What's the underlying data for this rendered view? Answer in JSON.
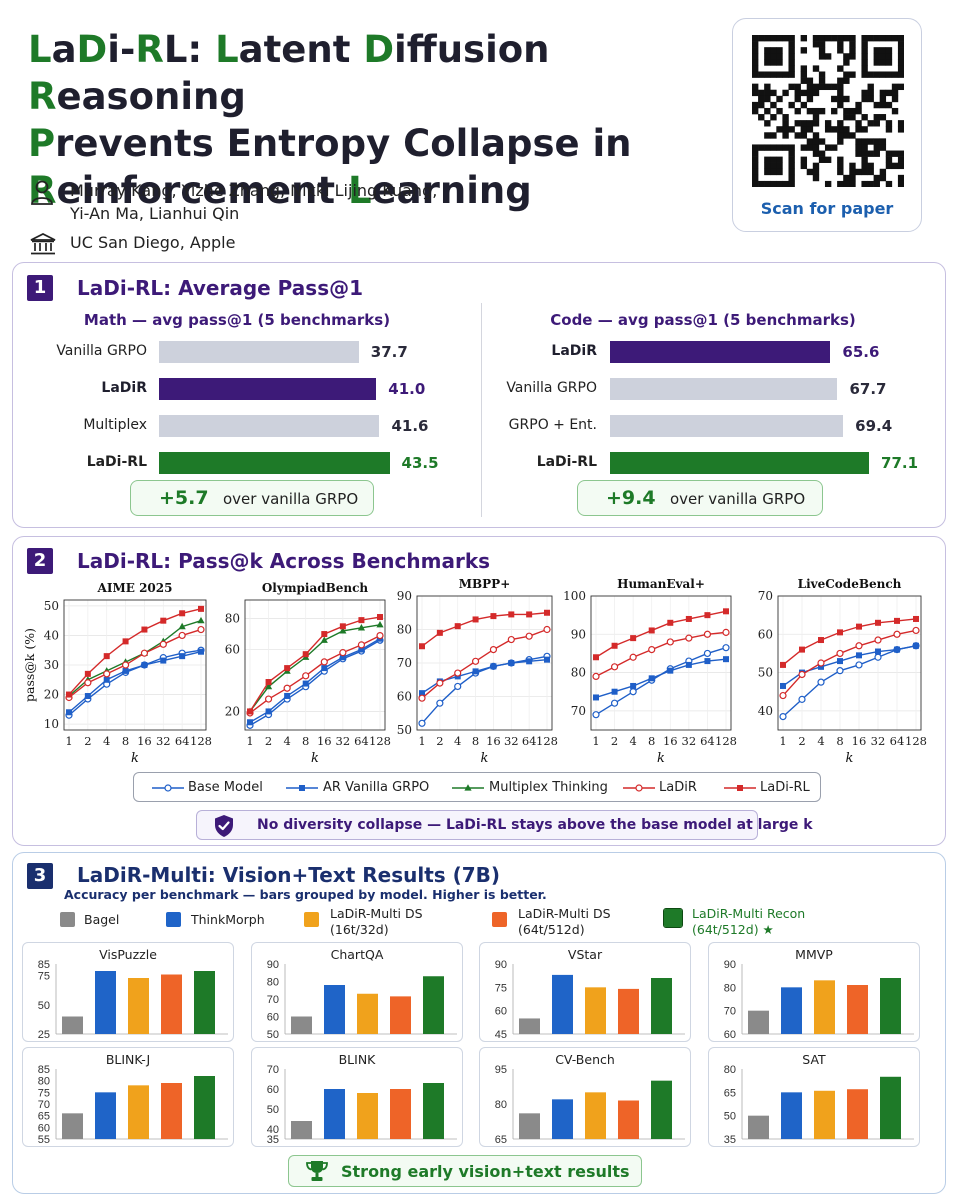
{
  "title": {
    "lines": [
      [
        {
          "t": "L",
          "g": true
        },
        {
          "t": "a"
        },
        {
          "t": "D",
          "g": true
        },
        {
          "t": "i-"
        },
        {
          "t": "R",
          "g": true
        },
        {
          "t": "L: "
        },
        {
          "t": "L",
          "g": true
        },
        {
          "t": "atent "
        },
        {
          "t": "D",
          "g": true
        },
        {
          "t": "iffusion "
        },
        {
          "t": "R",
          "g": true
        },
        {
          "t": "easoning"
        }
      ],
      [
        {
          "t": "P",
          "g": true
        },
        {
          "t": "revents Entropy Collapse in"
        }
      ],
      [
        {
          "t": "R",
          "g": true
        },
        {
          "t": "einforcement "
        },
        {
          "t": "L",
          "g": true
        },
        {
          "t": "earning"
        }
      ]
    ]
  },
  "authors": {
    "line1": "Murray Kang, Yizhe Zhang, Nikki Lijing Kuang,",
    "line2": "Yi-An Ma, Lianhui Qin",
    "icon": "person-icon"
  },
  "affiliation": {
    "text": "UC San Diego, Apple",
    "icon": "institution-icon"
  },
  "qr": {
    "label": "Scan for paper"
  },
  "colors": {
    "purple": "#3d1a78",
    "green": "#1e7a28",
    "gray_bar": "#cdd1dc",
    "blue_series": "#1f5fc8",
    "red_series": "#d42a2a",
    "bagel": "#8a8a8a",
    "thinkmorph": "#1f64c8",
    "ds16": "#f0a21c",
    "ds64": "#ee6428",
    "recon": "#1e7a28"
  },
  "section1": {
    "number": "1",
    "title": "LaDi-RL: Average Pass@1",
    "math": {
      "subtitle": "Math — avg pass@1 (5 benchmarks)",
      "bars": [
        {
          "label": "Vanilla GRPO",
          "value": 37.7,
          "display": "37.7",
          "color": "gray"
        },
        {
          "label": "LaDiR",
          "value": 41.0,
          "display": "41.0",
          "color": "purple"
        },
        {
          "label": "Multiplex",
          "value": 41.6,
          "display": "41.6",
          "color": "gray"
        },
        {
          "label": "LaDi-RL",
          "value": 43.5,
          "display": "43.5",
          "color": "green"
        }
      ],
      "gain": {
        "value": "+5.7",
        "text": "over vanilla GRPO"
      }
    },
    "code": {
      "subtitle": "Code — avg pass@1 (5 benchmarks)",
      "bars": [
        {
          "label": "LaDiR",
          "value": 65.6,
          "display": "65.6",
          "color": "purple"
        },
        {
          "label": "Vanilla GRPO",
          "value": 67.7,
          "display": "67.7",
          "color": "gray"
        },
        {
          "label": "GRPO + Ent.",
          "value": 69.4,
          "display": "69.4",
          "color": "gray"
        },
        {
          "label": "LaDi-RL",
          "value": 77.1,
          "display": "77.1",
          "color": "green"
        }
      ],
      "gain": {
        "value": "+9.4",
        "text": "over vanilla GRPO"
      }
    }
  },
  "section2": {
    "number": "2",
    "title": "LaDi-RL: Pass@k Across Benchmarks",
    "ylabel": "pass@k (%)",
    "xlabel": "k",
    "note": "No diversity collapse — LaDi-RL stays above the base model at large k",
    "legend": [
      "Base Model",
      "AR Vanilla GRPO",
      "Multiplex Thinking",
      "LaDiR",
      "LaDi-RL"
    ]
  },
  "chart_data": [
    {
      "type": "line",
      "title": "AIME 2025",
      "xlabel": "k",
      "ylabel": "pass@k (%)",
      "x": [
        "1",
        "2",
        "4",
        "8",
        "16",
        "32",
        "64",
        "128"
      ],
      "ylim": [
        8,
        52
      ],
      "yticks": [
        10,
        20,
        30,
        40,
        50
      ],
      "series": [
        {
          "name": "Base Model",
          "values": [
            13,
            18.5,
            23.5,
            27.5,
            30,
            32.5,
            34,
            35
          ]
        },
        {
          "name": "AR Vanilla GRPO",
          "values": [
            14,
            19.5,
            25,
            28,
            30,
            31.5,
            33,
            34.5
          ]
        },
        {
          "name": "Multiplex Thinking",
          "values": [
            19.5,
            25,
            28,
            31,
            34,
            38,
            43,
            45
          ]
        },
        {
          "name": "LaDiR",
          "values": [
            19,
            24,
            27,
            30,
            34,
            37,
            40,
            42
          ]
        },
        {
          "name": "LaDi-RL",
          "values": [
            20,
            27,
            33,
            38,
            42,
            45,
            47.5,
            49
          ]
        }
      ]
    },
    {
      "type": "line",
      "title": "OlympiadBench",
      "xlabel": "k",
      "ylabel": "",
      "x": [
        "1",
        "2",
        "4",
        "8",
        "16",
        "32",
        "64",
        "128"
      ],
      "ylim": [
        8,
        92
      ],
      "yticks": [
        20,
        60,
        80
      ],
      "series": [
        {
          "name": "Base Model",
          "values": [
            11,
            18,
            28,
            36,
            46,
            54,
            59,
            66
          ]
        },
        {
          "name": "AR Vanilla GRPO",
          "values": [
            13,
            20,
            30,
            38,
            48,
            55,
            60,
            67
          ]
        },
        {
          "name": "Multiplex Thinking",
          "values": [
            20,
            36,
            46,
            55,
            66,
            72,
            74,
            76
          ]
        },
        {
          "name": "LaDiR",
          "values": [
            19,
            28,
            35,
            43,
            52,
            58,
            63,
            69
          ]
        },
        {
          "name": "LaDi-RL",
          "values": [
            20,
            39,
            48,
            57,
            70,
            75,
            79,
            81
          ]
        }
      ]
    },
    {
      "type": "line",
      "title": "MBPP+",
      "xlabel": "k",
      "ylabel": "",
      "x": [
        "1",
        "2",
        "4",
        "8",
        "16",
        "32",
        "64",
        "128"
      ],
      "ylim": [
        50,
        90
      ],
      "yticks": [
        50,
        60,
        70,
        80,
        90
      ],
      "series": [
        {
          "name": "Base Model",
          "values": [
            52,
            58,
            63,
            67,
            69,
            70,
            71,
            72
          ]
        },
        {
          "name": "AR Vanilla GRPO",
          "values": [
            61,
            64.5,
            66,
            67.5,
            69,
            70,
            70.5,
            71
          ]
        },
        {
          "name": "LaDiR",
          "values": [
            59.5,
            64,
            67,
            70.5,
            74,
            77,
            78,
            80
          ]
        },
        {
          "name": "LaDi-RL",
          "values": [
            75,
            79,
            81,
            83,
            84,
            84.5,
            84.5,
            85
          ]
        }
      ]
    },
    {
      "type": "line",
      "title": "HumanEval+",
      "xlabel": "k",
      "ylabel": "",
      "x": [
        "1",
        "2",
        "4",
        "8",
        "16",
        "32",
        "64",
        "128"
      ],
      "ylim": [
        65,
        100
      ],
      "yticks": [
        70,
        80,
        90,
        100
      ],
      "series": [
        {
          "name": "Base Model",
          "values": [
            69,
            72,
            75,
            78,
            81,
            83,
            85,
            86.5
          ]
        },
        {
          "name": "AR Vanilla GRPO",
          "values": [
            73.5,
            75,
            76.5,
            78.5,
            80.5,
            82,
            83,
            83.5
          ]
        },
        {
          "name": "LaDiR",
          "values": [
            79,
            81.5,
            84,
            86,
            88,
            89,
            90,
            90.5
          ]
        },
        {
          "name": "LaDi-RL",
          "values": [
            84,
            87,
            89,
            91,
            93,
            94,
            95,
            96
          ]
        }
      ]
    },
    {
      "type": "line",
      "title": "LiveCodeBench",
      "xlabel": "k",
      "ylabel": "",
      "x": [
        "1",
        "2",
        "4",
        "8",
        "16",
        "32",
        "64",
        "128"
      ],
      "ylim": [
        35,
        70
      ],
      "yticks": [
        40,
        50,
        60,
        70
      ],
      "series": [
        {
          "name": "Base Model",
          "values": [
            38.5,
            43,
            47.5,
            50.5,
            52,
            54,
            56,
            57
          ]
        },
        {
          "name": "AR Vanilla GRPO",
          "values": [
            46.5,
            50,
            51.5,
            53,
            54.5,
            55.5,
            56,
            57
          ]
        },
        {
          "name": "LaDiR",
          "values": [
            44,
            49.5,
            52.5,
            55,
            57,
            58.5,
            60,
            61
          ]
        },
        {
          "name": "LaDi-RL",
          "values": [
            52,
            56,
            58.5,
            60.5,
            62,
            63,
            63.5,
            64
          ]
        }
      ]
    },
    {
      "type": "bar",
      "title": "VisPuzzle",
      "categories": [
        "Bagel",
        "ThinkMorph",
        "LaDiR-Multi DS (16t/32d)",
        "LaDiR-Multi DS (64t/512d)",
        "LaDiR-Multi Recon (64t/512d)"
      ],
      "values": [
        40,
        79,
        73,
        76,
        79
      ],
      "ylim": [
        25,
        85
      ],
      "yticks": [
        25,
        50,
        75,
        85
      ]
    },
    {
      "type": "bar",
      "title": "ChartQA",
      "categories": [
        "Bagel",
        "ThinkMorph",
        "LaDiR-Multi DS (16t/32d)",
        "LaDiR-Multi DS (64t/512d)",
        "LaDiR-Multi Recon (64t/512d)"
      ],
      "values": [
        60,
        78,
        73,
        71.5,
        83
      ],
      "ylim": [
        50,
        90
      ],
      "yticks": [
        50,
        60,
        70,
        80,
        90
      ]
    },
    {
      "type": "bar",
      "title": "VStar",
      "categories": [
        "Bagel",
        "ThinkMorph",
        "LaDiR-Multi DS (16t/32d)",
        "LaDiR-Multi DS (64t/512d)",
        "LaDiR-Multi Recon (64t/512d)"
      ],
      "values": [
        55,
        83,
        75,
        74,
        81
      ],
      "ylim": [
        45,
        90
      ],
      "yticks": [
        45,
        60,
        75,
        90
      ]
    },
    {
      "type": "bar",
      "title": "MMVP",
      "categories": [
        "Bagel",
        "ThinkMorph",
        "LaDiR-Multi DS (16t/32d)",
        "LaDiR-Multi DS (64t/512d)",
        "LaDiR-Multi Recon (64t/512d)"
      ],
      "values": [
        70,
        80,
        83,
        81,
        84
      ],
      "ylim": [
        60,
        90
      ],
      "yticks": [
        60,
        70,
        80,
        90
      ]
    },
    {
      "type": "bar",
      "title": "BLINK-J",
      "categories": [
        "Bagel",
        "ThinkMorph",
        "LaDiR-Multi DS (16t/32d)",
        "LaDiR-Multi DS (64t/512d)",
        "LaDiR-Multi Recon (64t/512d)"
      ],
      "values": [
        66,
        75,
        78,
        79,
        82
      ],
      "ylim": [
        55,
        85
      ],
      "yticks": [
        55,
        60,
        65,
        70,
        75,
        80,
        85
      ]
    },
    {
      "type": "bar",
      "title": "BLINK",
      "categories": [
        "Bagel",
        "ThinkMorph",
        "LaDiR-Multi DS (16t/32d)",
        "LaDiR-Multi DS (64t/512d)",
        "LaDiR-Multi Recon (64t/512d)"
      ],
      "values": [
        44,
        60,
        58,
        60,
        63
      ],
      "ylim": [
        35,
        70
      ],
      "yticks": [
        35,
        40,
        50,
        60,
        70
      ]
    },
    {
      "type": "bar",
      "title": "CV-Bench",
      "categories": [
        "Bagel",
        "ThinkMorph",
        "LaDiR-Multi DS (16t/32d)",
        "LaDiR-Multi DS (64t/512d)",
        "LaDiR-Multi Recon (64t/512d)"
      ],
      "values": [
        76,
        82,
        85,
        81.5,
        90
      ],
      "ylim": [
        65,
        95
      ],
      "yticks": [
        65,
        80,
        95
      ]
    },
    {
      "type": "bar",
      "title": "SAT",
      "categories": [
        "Bagel",
        "ThinkMorph",
        "LaDiR-Multi DS (16t/32d)",
        "LaDiR-Multi DS (64t/512d)",
        "LaDiR-Multi Recon (64t/512d)"
      ],
      "values": [
        50,
        65,
        66,
        67,
        75
      ],
      "ylim": [
        35,
        80
      ],
      "yticks": [
        35,
        50,
        65,
        80
      ]
    }
  ],
  "section3": {
    "number": "3",
    "title": "LaDiR-Multi: Vision+Text Results (7B)",
    "subtitle": "Accuracy per benchmark — bars grouped by model. Higher is better.",
    "legend": [
      {
        "line1": "Bagel",
        "line2": "",
        "color": "#8a8a8a"
      },
      {
        "line1": "ThinkMorph",
        "line2": "",
        "color": "#1f64c8"
      },
      {
        "line1": "LaDiR-Multi DS",
        "line2": "(16t/32d)",
        "color": "#f0a21c"
      },
      {
        "line1": "LaDiR-Multi DS",
        "line2": "(64t/512d)",
        "color": "#ee6428"
      },
      {
        "line1": "LaDiR-Multi Recon",
        "line2": "(64t/512d) ★",
        "color": "#1e7a28"
      }
    ],
    "footer": "Strong early vision+text results"
  }
}
